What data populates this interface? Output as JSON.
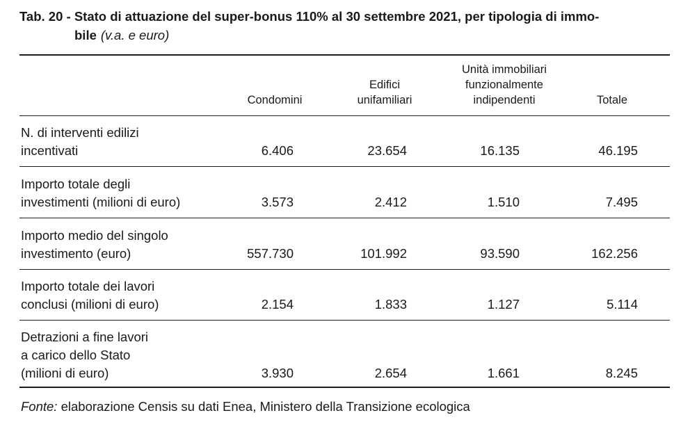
{
  "title": {
    "line1": "Tab. 20 - Stato di attuazione del super-bonus 110% al 30 settembre 2021, per tipologia di immo-",
    "line2": "bile",
    "subtitle": "(v.a. e euro)"
  },
  "table": {
    "columns": [
      "Condomini",
      "Edifici\nunifamiliari",
      "Unità immobiliari\nfunzionalmente\nindipendenti",
      "Totale"
    ],
    "rows": [
      {
        "label": "N. di interventi edilizi\nincentivati",
        "values": [
          "6.406",
          "23.654",
          "16.135",
          "46.195"
        ]
      },
      {
        "label": "Importo totale degli\ninvestimenti (milioni di euro)",
        "values": [
          "3.573",
          "2.412",
          "1.510",
          "7.495"
        ]
      },
      {
        "label": "Importo medio del singolo\ninvestimento (euro)",
        "values": [
          "557.730",
          "101.992",
          "93.590",
          "162.256"
        ]
      },
      {
        "label": "Importo totale dei lavori\nconclusi (milioni di euro)",
        "values": [
          "2.154",
          "1.833",
          "1.127",
          "5.114"
        ]
      },
      {
        "label": "Detrazioni a fine lavori\na carico dello Stato\n(milioni di euro)",
        "values": [
          "3.930",
          "2.654",
          "1.661",
          "8.245"
        ]
      }
    ]
  },
  "source": {
    "prefix": "Fonte:",
    "text": " elaborazione Censis su dati Enea, Ministero della Transizione ecologica"
  }
}
